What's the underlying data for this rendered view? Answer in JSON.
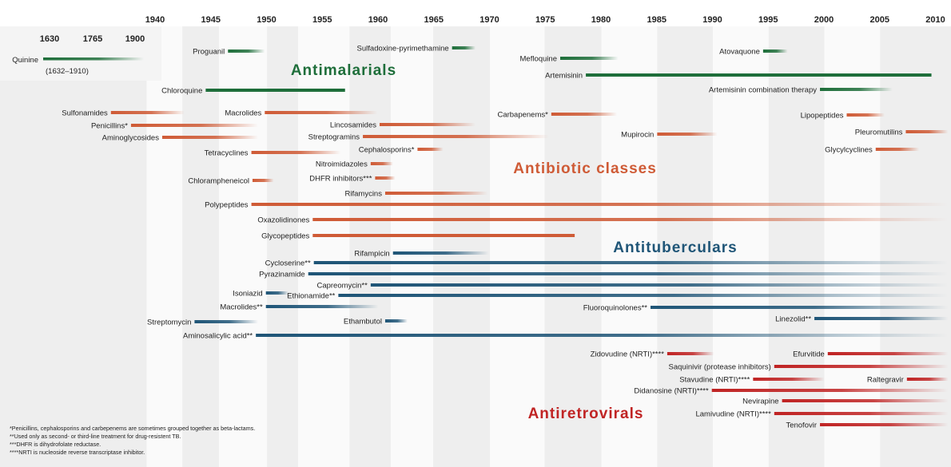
{
  "colors": {
    "antimalarials": "#1e6e3a",
    "antibiotics": "#cf5b36",
    "antituberculars": "#1f5577",
    "antiretrovirals": "#c02424",
    "band_light": "#eeeeee",
    "band_white": "#fafafa",
    "inset": "#f4f4f4"
  },
  "chart_data": {
    "type": "timeline",
    "x_ticks": [
      1940,
      1945,
      1950,
      1955,
      1960,
      1965,
      1970,
      1975,
      1980,
      1985,
      1990,
      1995,
      2000,
      2005,
      2010
    ],
    "xlim": [
      1937,
      2011
    ],
    "inset_ticks": [
      1630,
      1765,
      1900
    ],
    "group_titles": {
      "antimalarials": "Antimalarials",
      "antibiotics": "Antibiotic classes",
      "antituberculars": "Antituberculars",
      "antiretrovirals": "Antiretrovirals"
    },
    "inset_item": {
      "label": "Quinine",
      "note": "(1632–1910)",
      "start": 1632,
      "end": 1910
    },
    "items": [
      {
        "label": "Proguanil",
        "group": "antimalarials",
        "start": 1946.4,
        "end": 1949.7,
        "fade": true
      },
      {
        "label": "Sulfadoxine-pyrimethamine",
        "group": "antimalarials",
        "start": 1966.5,
        "end": 1968.6,
        "fade": true
      },
      {
        "label": "Mefloquine",
        "group": "antimalarials",
        "start": 1976.2,
        "end": 1981.4,
        "fade": true
      },
      {
        "label": "Atovaquone",
        "group": "antimalarials",
        "start": 1994.4,
        "end": 1996.6,
        "fade": true
      },
      {
        "label": "Artemisinin",
        "group": "antimalarials",
        "start": 1978.5,
        "end": 2009.5,
        "fade": false
      },
      {
        "label": "Chloroquine",
        "group": "antimalarials",
        "start": 1944.4,
        "end": 1956.9,
        "fade": false
      },
      {
        "label": "Artemisinin combination therapy",
        "group": "antimalarials",
        "start": 1999.5,
        "end": 2006,
        "fade": true
      },
      {
        "label": "Sulfonamides",
        "group": "antibiotics",
        "start": 1935.9,
        "end": 1942.5,
        "fade": true
      },
      {
        "label": "Macrolides",
        "group": "antibiotics",
        "start": 1949.7,
        "end": 1959.8,
        "fade": true
      },
      {
        "label": "Carbapenems*",
        "group": "antibiotics",
        "start": 1975.4,
        "end": 1981.3,
        "fade": true
      },
      {
        "label": "Lipopeptides",
        "group": "antibiotics",
        "start": 2001.9,
        "end": 2005.3,
        "fade": true
      },
      {
        "label": "Penicillins*",
        "group": "antibiotics",
        "start": 1937.7,
        "end": 1949.1,
        "fade": true
      },
      {
        "label": "Lincosamides",
        "group": "antibiotics",
        "start": 1960,
        "end": 1968.6,
        "fade": true
      },
      {
        "label": "Pleuromutilins",
        "group": "antibiotics",
        "start": 2007.2,
        "end": 2011,
        "fade": true
      },
      {
        "label": "Aminoglycosides",
        "group": "antibiotics",
        "start": 1940.5,
        "end": 1949.1,
        "fade": true
      },
      {
        "label": "Streptogramins",
        "group": "antibiotics",
        "start": 1958.5,
        "end": 1975.2,
        "fade": true
      },
      {
        "label": "Mupirocin",
        "group": "antibiotics",
        "start": 1984.9,
        "end": 1990.3,
        "fade": true
      },
      {
        "label": "Cephalosporins*",
        "group": "antibiotics",
        "start": 1963.4,
        "end": 1965.7,
        "fade": true
      },
      {
        "label": "Glycylcyclines",
        "group": "antibiotics",
        "start": 2004.5,
        "end": 2008.4,
        "fade": true
      },
      {
        "label": "Tetracyclines",
        "group": "antibiotics",
        "start": 1948.5,
        "end": 1956.5,
        "fade": true
      },
      {
        "label": "Nitroimidazoles",
        "group": "antibiotics",
        "start": 1959.2,
        "end": 1961.2,
        "fade": true
      },
      {
        "label": "DHFR inhibitors***",
        "group": "antibiotics",
        "start": 1959.6,
        "end": 1961.4,
        "fade": true
      },
      {
        "label": "Chlorampheneicol",
        "group": "antibiotics",
        "start": 1948.6,
        "end": 1950.5,
        "fade": true
      },
      {
        "label": "Rifamycins",
        "group": "antibiotics",
        "start": 1960.5,
        "end": 1969.7,
        "fade": true
      },
      {
        "label": "Polypeptides",
        "group": "antibiotics",
        "start": 1948.5,
        "end": 2011,
        "fade": true
      },
      {
        "label": "Oxazolidinones",
        "group": "antibiotics",
        "start": 1954,
        "end": 2011,
        "fade": true
      },
      {
        "label": "Glycopeptides",
        "group": "antibiotics",
        "start": 1954,
        "end": 1977.5,
        "fade": false
      },
      {
        "label": "Rifampicin",
        "group": "antituberculars",
        "start": 1961.2,
        "end": 1969.8,
        "fade": true
      },
      {
        "label": "Cycloserine**",
        "group": "antituberculars",
        "start": 1954.1,
        "end": 2011,
        "fade": true
      },
      {
        "label": "Pyrazinamide",
        "group": "antituberculars",
        "start": 1953.6,
        "end": 2011,
        "fade": true
      },
      {
        "label": "Capreomycin**",
        "group": "antituberculars",
        "start": 1959.2,
        "end": 2011,
        "fade": true
      },
      {
        "label": "Isoniazid",
        "group": "antituberculars",
        "start": 1949.8,
        "end": 1951.8,
        "fade": true
      },
      {
        "label": "Ethionamide**",
        "group": "antituberculars",
        "start": 1956.3,
        "end": 2011,
        "fade": true
      },
      {
        "label": "Macrolides**",
        "group": "antituberculars",
        "start": 1949.8,
        "end": 1959.9,
        "fade": true
      },
      {
        "label": "Fluoroquinolones**",
        "group": "antituberculars",
        "start": 1984.3,
        "end": 2011,
        "fade": true
      },
      {
        "label": "Streptomycin",
        "group": "antituberculars",
        "start": 1943.4,
        "end": 1949.1,
        "fade": true
      },
      {
        "label": "Ethambutol",
        "group": "antituberculars",
        "start": 1960.5,
        "end": 1962.5,
        "fade": true
      },
      {
        "label": "Linezolid**",
        "group": "antituberculars",
        "start": 1999,
        "end": 2011,
        "fade": true
      },
      {
        "label": "Aminosalicylic acid**",
        "group": "antituberculars",
        "start": 1948.9,
        "end": 2011,
        "fade": true
      },
      {
        "label": "Zidovudine (NRTI)****",
        "group": "antiretrovirals",
        "start": 1985.8,
        "end": 1990,
        "fade": true
      },
      {
        "label": "Efurvitide",
        "group": "antiretrovirals",
        "start": 2000.2,
        "end": 2011,
        "fade": true
      },
      {
        "label": "Saquinivir (protease inhibitors)",
        "group": "antiretrovirals",
        "start": 1995.4,
        "end": 2011,
        "fade": true
      },
      {
        "label": "Stavudine (NRTI)****",
        "group": "antiretrovirals",
        "start": 1993.5,
        "end": 1999.9,
        "fade": true
      },
      {
        "label": "Raltegravir",
        "group": "antiretrovirals",
        "start": 2007.3,
        "end": 2011,
        "fade": true
      },
      {
        "label": "Didanosine (NRTI)****",
        "group": "antiretrovirals",
        "start": 1989.8,
        "end": 2011,
        "fade": true
      },
      {
        "label": "Nevirapine",
        "group": "antiretrovirals",
        "start": 1996.1,
        "end": 2011,
        "fade": true
      },
      {
        "label": "Lamivudine (NRTI)****",
        "group": "antiretrovirals",
        "start": 1995.4,
        "end": 2011,
        "fade": true
      },
      {
        "label": "Tenofovir",
        "group": "antiretrovirals",
        "start": 1999.5,
        "end": 2011,
        "fade": true
      }
    ],
    "footnotes": [
      "*Penicillins, cephalosporins and carbepenems are sometimes grouped together as beta-lactams.",
      "**Used only as second- or third-line treatment for drug-resistent TB.",
      "***DHFR is dihydrofolate reductase.",
      "****NRTI is nucleoside reverse transcriptase inhibitor."
    ]
  }
}
